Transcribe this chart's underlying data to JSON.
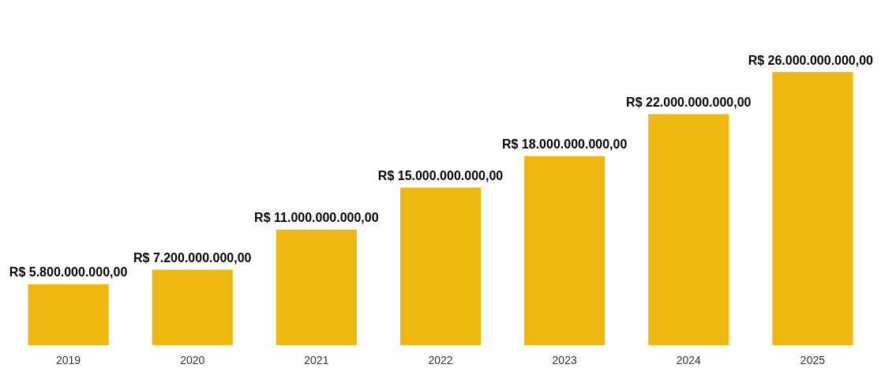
{
  "chart_data": {
    "type": "bar",
    "categories": [
      "2019",
      "2020",
      "2021",
      "2022",
      "2023",
      "2024",
      "2025"
    ],
    "values": [
      5800000000,
      7200000000,
      11000000000,
      15000000000,
      18000000000,
      22000000000,
      26000000000
    ],
    "value_labels": [
      "R$ 5.800.000.000,00",
      "R$ 7.200.000.000,00",
      "R$ 11.000.000.000,00",
      "R$ 15.000.000.000,00",
      "R$ 18.000.000.000,00",
      "R$ 22.000.000.000,00",
      "R$ 26.000.000.000,00"
    ],
    "color": "#eeb711",
    "grid": false,
    "legend": false
  }
}
